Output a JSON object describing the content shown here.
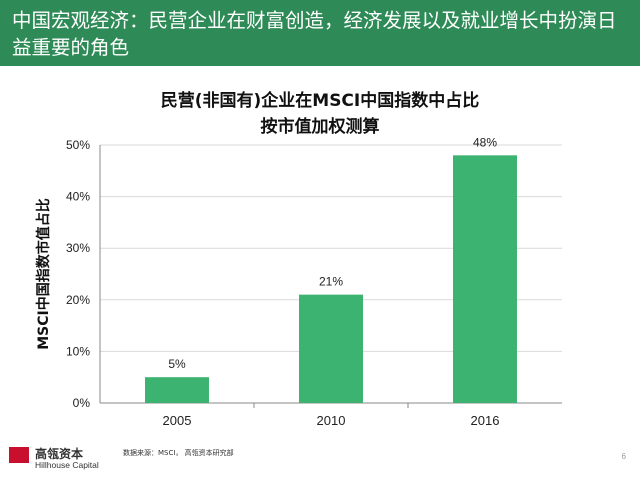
{
  "header": {
    "title": "中国宏观经济：民营企业在财富创造，经济发展以及就业增长中扮演日益重要的角色",
    "background": "#2e8b57"
  },
  "chart_data": {
    "type": "bar",
    "title": "民营(非国有)企业在MSCI中国指数中占比",
    "subtitle": "按市值加权测算",
    "ylabel": "MSCI中国指数市值占比",
    "xlabel": "",
    "categories": [
      "2005",
      "2010",
      "2016"
    ],
    "values": [
      5,
      21,
      48
    ],
    "data_labels": [
      "5%",
      "21%",
      "48%"
    ],
    "ylim": [
      0,
      50
    ],
    "yticks": [
      0,
      10,
      20,
      30,
      40,
      50
    ],
    "ytick_labels": [
      "0%",
      "10%",
      "20%",
      "30%",
      "40%",
      "50%"
    ],
    "bar_color": "#3cb371",
    "grid": true
  },
  "footer": {
    "logo_cn": "高瓴资本",
    "logo_en": "Hillhouse Capital",
    "source": "数据来源：MSCI， 高瓴资本研究部",
    "page_number": "6"
  }
}
